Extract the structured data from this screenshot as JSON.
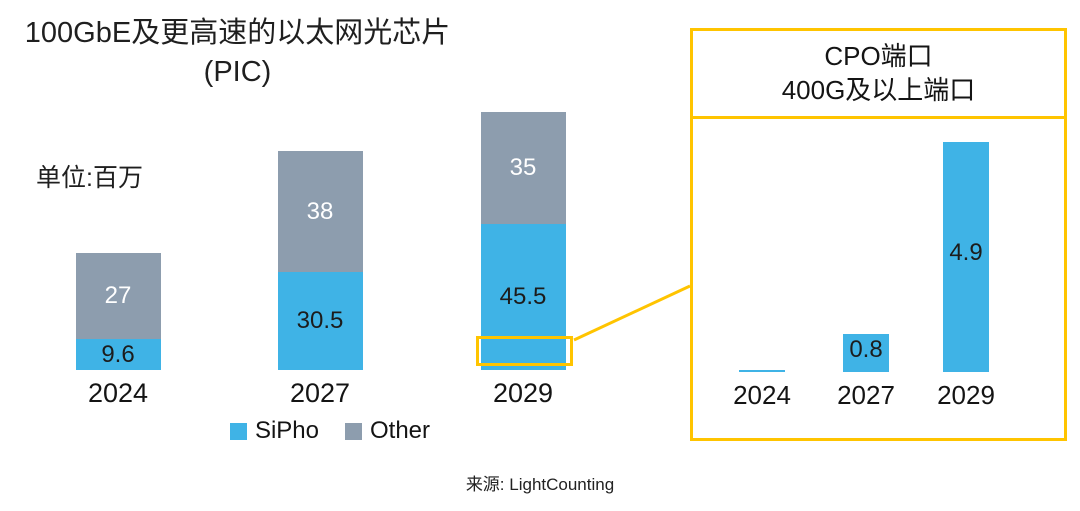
{
  "title": {
    "line1": "100GbE及更高速的以太网光芯片",
    "line2": "(PIC)"
  },
  "unit_label": "单位:百万",
  "source": "来源: LightCounting",
  "colors": {
    "sipho": "#3FB3E6",
    "other": "#8D9DAE",
    "highlight": "#FFC400",
    "label_on_gray": "#FFFFFF",
    "label_on_blue": "#1C1C1C"
  },
  "legend": [
    {
      "label": "SiPho",
      "color_key": "sipho"
    },
    {
      "label": "Other",
      "color_key": "other"
    }
  ],
  "inset": {
    "title_line1": "CPO端口",
    "title_line2": "400G及以上端口"
  },
  "chart_data": [
    {
      "type": "bar",
      "stacked": true,
      "title": "100GbE及更高速的以太网光芯片 (PIC)",
      "unit": "百万",
      "categories": [
        "2024",
        "2027",
        "2029"
      ],
      "series": [
        {
          "name": "SiPho",
          "values": [
            9.6,
            30.5,
            45.5
          ],
          "labels": [
            "9.6",
            "30.5",
            "45.5"
          ]
        },
        {
          "name": "Other",
          "values": [
            27,
            38,
            35
          ],
          "labels": [
            "27",
            "38",
            "35"
          ]
        }
      ],
      "legend_position": "bottom"
    },
    {
      "type": "bar",
      "title": "CPO端口 400G及以上端口",
      "categories": [
        "2024",
        "2027",
        "2029"
      ],
      "values": [
        0,
        0.8,
        4.9
      ],
      "labels": [
        "",
        "0.8",
        "4.9"
      ]
    }
  ]
}
